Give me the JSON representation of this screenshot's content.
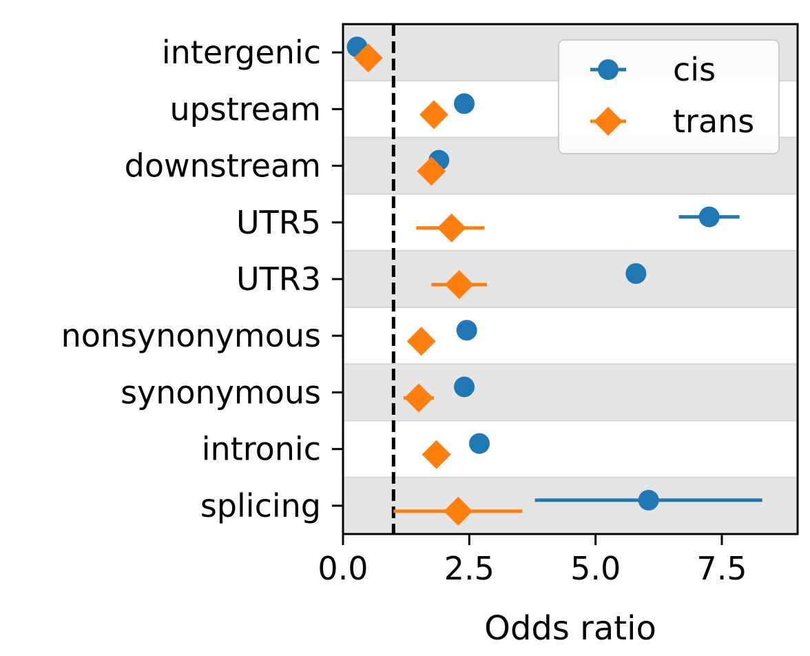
{
  "chart_data": {
    "type": "scatter",
    "orientation": "horizontal",
    "xlabel": "Odds ratio",
    "ylabel": "",
    "title": "",
    "xlim": [
      0,
      9
    ],
    "x_ticks": [
      {
        "value": 0.0,
        "label": "0.0"
      },
      {
        "value": 2.5,
        "label": "2.5"
      },
      {
        "value": 5.0,
        "label": "5.0"
      },
      {
        "value": 7.5,
        "label": "7.5"
      }
    ],
    "categories": [
      "intergenic",
      "upstream",
      "downstream",
      "UTR5",
      "UTR3",
      "nonsynonymous",
      "synonymous",
      "intronic",
      "splicing"
    ],
    "reference_line": {
      "x": 1.0,
      "style": "dashed",
      "color": "#000000"
    },
    "row_shading": [
      "#e5e5e5",
      "#ffffff"
    ],
    "grid": false,
    "legend_position": "upper right",
    "series": [
      {
        "name": "cis",
        "marker": "circle",
        "color": "#1f77b4",
        "values": [
          0.28,
          2.4,
          1.9,
          7.25,
          5.8,
          2.45,
          2.4,
          2.7,
          6.05
        ],
        "ci_low": [
          0.28,
          2.4,
          1.9,
          6.65,
          5.8,
          2.45,
          2.4,
          2.7,
          3.8
        ],
        "ci_high": [
          0.28,
          2.4,
          1.9,
          7.85,
          5.8,
          2.45,
          2.4,
          2.7,
          8.3
        ]
      },
      {
        "name": "trans",
        "marker": "diamond",
        "color": "#ff7f0e",
        "values": [
          0.5,
          1.8,
          1.75,
          2.15,
          2.3,
          1.55,
          1.5,
          1.85,
          2.28
        ],
        "ci_low": [
          0.5,
          1.8,
          1.75,
          1.45,
          1.75,
          1.55,
          1.2,
          1.85,
          1.0
        ],
        "ci_high": [
          0.5,
          1.8,
          1.75,
          2.8,
          2.85,
          1.55,
          1.8,
          1.85,
          3.55
        ]
      }
    ]
  }
}
